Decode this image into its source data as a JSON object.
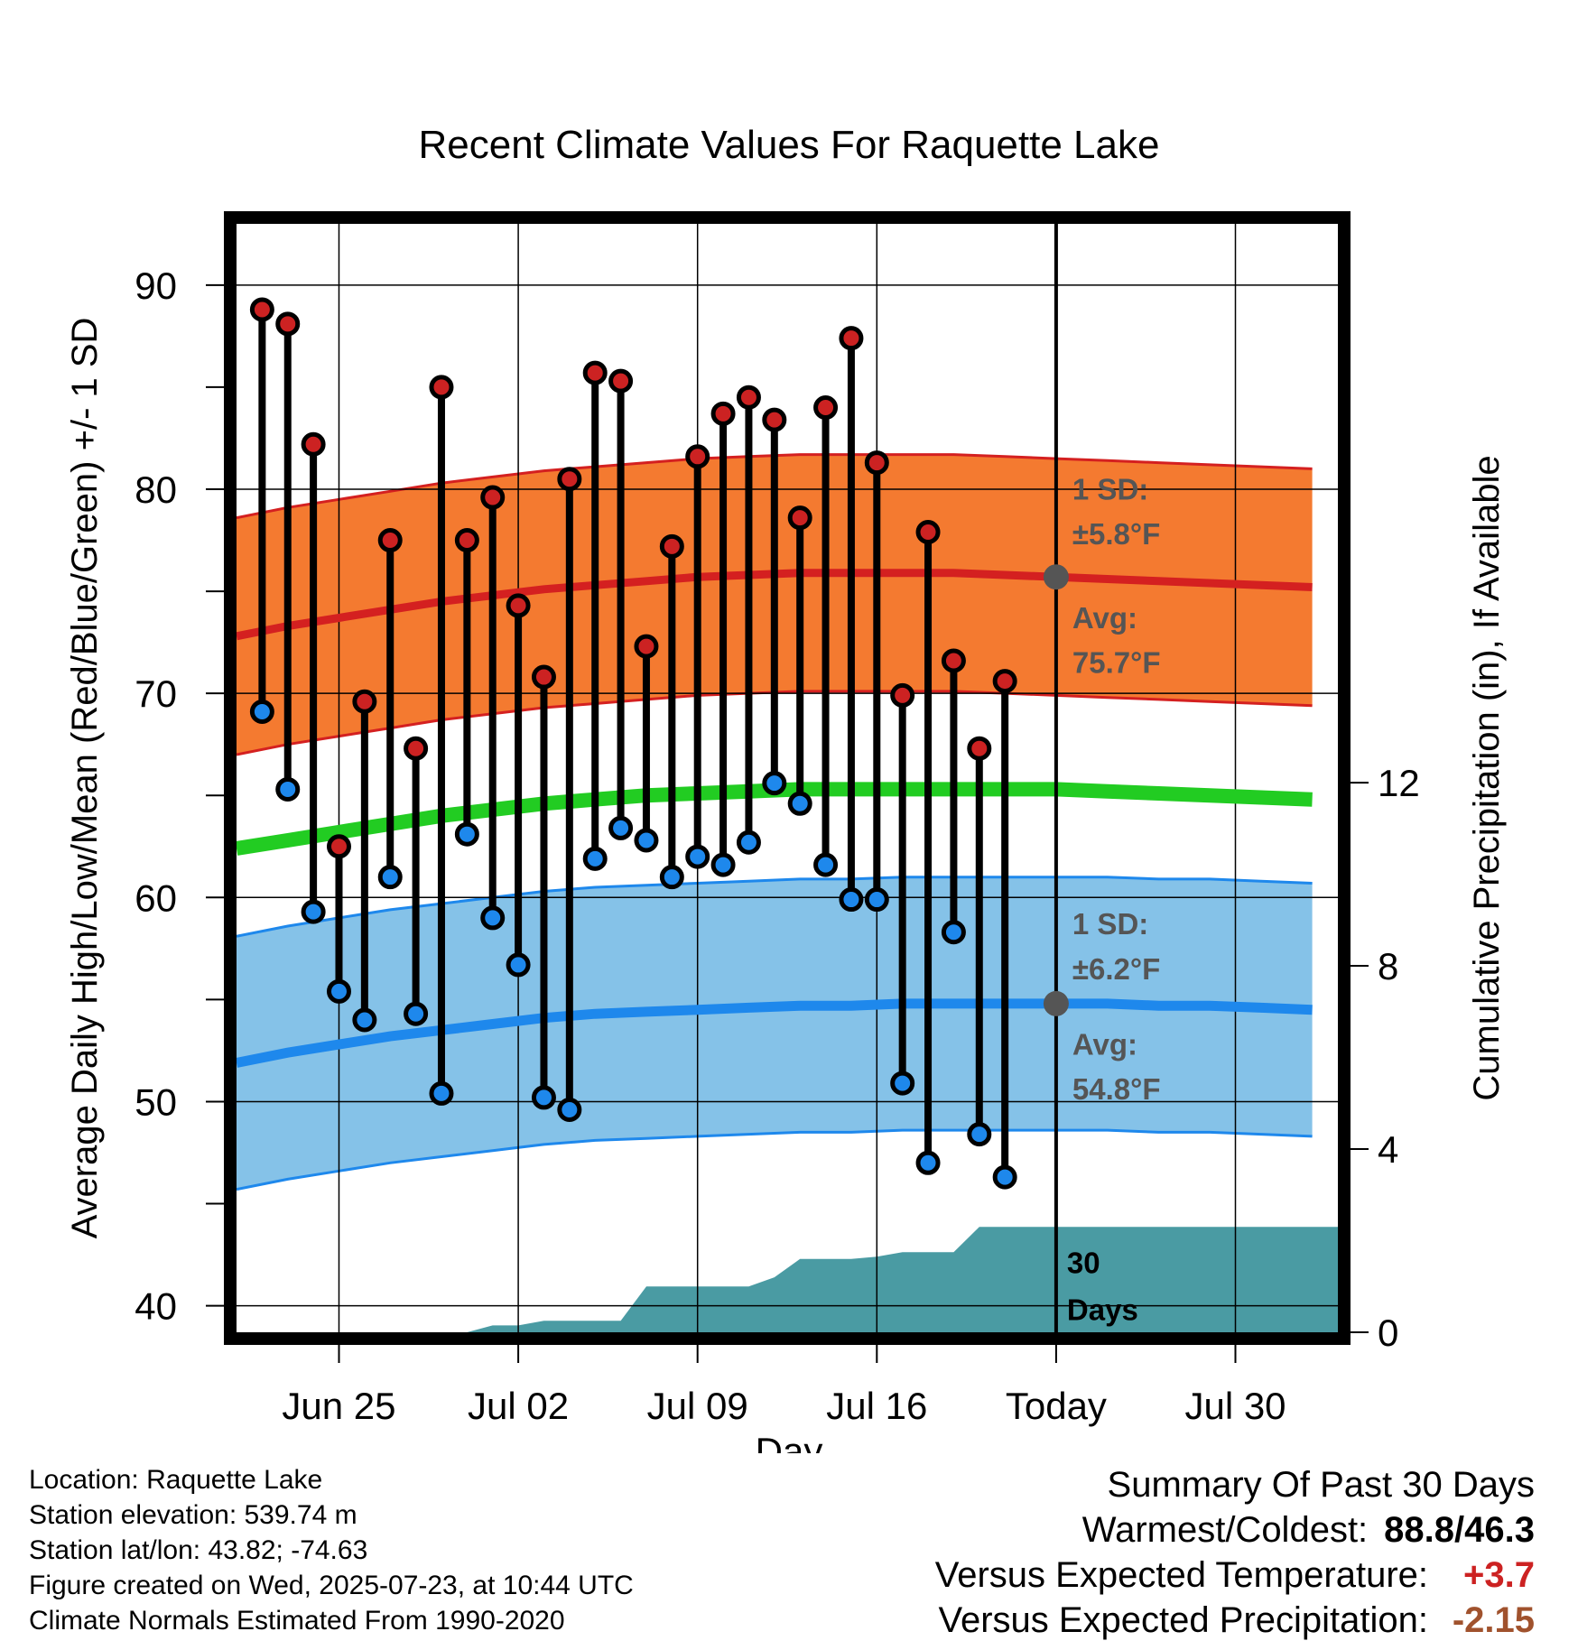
{
  "chart_data": {
    "type": "line",
    "title": "Recent Climate Values For Raquette Lake",
    "xlabel": "Day",
    "ylabel": "Average Daily High/Low/Mean (Red/Blue/Green) +/- 1 SD",
    "y2label": "Cumulative Precipitation (in), If Available",
    "x_ticks": [
      "Jun 25",
      "Jul 02",
      "Jul 09",
      "Jul 16",
      "Today",
      "Jul 30"
    ],
    "y_ticks": [
      "40",
      "50",
      "60",
      "70",
      "80",
      "90"
    ],
    "y2_ticks": [
      "0",
      "4",
      "8",
      "12"
    ],
    "ylim": [
      38.7,
      93
    ],
    "y2lim": [
      0,
      24.2
    ],
    "xlim": [
      "Jun 21",
      "Aug 03"
    ],
    "grid": true,
    "colors": {
      "high_band": "#f47a30",
      "high_line": "#d42020",
      "low_band": "#85c2e8",
      "low_line": "#1e88ec",
      "mean_line": "#22cc22",
      "precip": "#4a9ba3",
      "high_point": "#cc2222",
      "low_point": "#1e88ec"
    },
    "dates": [
      "Jun 22",
      "Jun 23",
      "Jun 24",
      "Jun 25",
      "Jun 26",
      "Jun 27",
      "Jun 28",
      "Jun 29",
      "Jun 30",
      "Jul 01",
      "Jul 02",
      "Jul 03",
      "Jul 04",
      "Jul 05",
      "Jul 06",
      "Jul 07",
      "Jul 08",
      "Jul 09",
      "Jul 10",
      "Jul 11",
      "Jul 12",
      "Jul 13",
      "Jul 14",
      "Jul 15",
      "Jul 16",
      "Jul 17",
      "Jul 18",
      "Jul 19",
      "Jul 20",
      "Jul 21",
      "Jul 22"
    ],
    "series": [
      {
        "name": "High",
        "values": [
          88.8,
          88.1,
          82.2,
          62.5,
          69.6,
          77.5,
          67.3,
          85.0,
          77.5,
          79.6,
          74.3,
          70.8,
          80.5,
          85.7,
          85.3,
          72.3,
          77.2,
          81.6,
          83.7,
          84.5,
          83.4,
          78.6,
          84.0,
          87.4,
          81.3,
          69.9,
          77.9,
          71.6,
          67.3,
          70.6,
          null
        ]
      },
      {
        "name": "Low",
        "values": [
          69.1,
          65.3,
          59.3,
          55.4,
          54.0,
          61.0,
          54.3,
          50.4,
          63.1,
          59.0,
          56.7,
          50.2,
          49.6,
          61.9,
          63.4,
          62.8,
          61.0,
          62.0,
          61.6,
          62.7,
          65.6,
          64.6,
          61.6,
          59.9,
          59.9,
          50.9,
          47.0,
          58.3,
          48.4,
          46.3,
          null
        ]
      }
    ],
    "normals": {
      "dates": [
        "Jun 21",
        "Jun 23",
        "Jun 25",
        "Jun 27",
        "Jun 29",
        "Jul 01",
        "Jul 03",
        "Jul 05",
        "Jul 07",
        "Jul 09",
        "Jul 11",
        "Jul 13",
        "Jul 15",
        "Jul 17",
        "Jul 19",
        "Jul 21",
        "Jul 23",
        "Jul 25",
        "Jul 27",
        "Jul 29",
        "Jul 31",
        "Aug 02"
      ],
      "high_avg": [
        72.8,
        73.3,
        73.7,
        74.1,
        74.5,
        74.8,
        75.1,
        75.3,
        75.5,
        75.7,
        75.8,
        75.9,
        75.9,
        75.9,
        75.9,
        75.8,
        75.7,
        75.6,
        75.5,
        75.4,
        75.3,
        75.2
      ],
      "high_sd": 5.8,
      "low_avg": [
        51.9,
        52.4,
        52.8,
        53.2,
        53.5,
        53.8,
        54.1,
        54.3,
        54.4,
        54.5,
        54.6,
        54.7,
        54.7,
        54.8,
        54.8,
        54.8,
        54.8,
        54.8,
        54.7,
        54.7,
        54.6,
        54.5
      ],
      "low_sd": 6.2,
      "mean_avg": [
        62.4,
        62.8,
        63.2,
        63.6,
        64.0,
        64.3,
        64.6,
        64.8,
        65.0,
        65.1,
        65.2,
        65.3,
        65.3,
        65.3,
        65.3,
        65.3,
        65.3,
        65.2,
        65.1,
        65.0,
        64.9,
        64.8
      ]
    },
    "precip": {
      "dates": [
        "Jun 21",
        "Jun 30",
        "Jul 01",
        "Jul 02",
        "Jul 03",
        "Jul 04",
        "Jul 05",
        "Jul 06",
        "Jul 07",
        "Jul 08",
        "Jul 09",
        "Jul 10",
        "Jul 11",
        "Jul 12",
        "Jul 13",
        "Jul 14",
        "Jul 15",
        "Jul 16",
        "Jul 17",
        "Jul 18",
        "Jul 19",
        "Jul 20",
        "Jul 21",
        "Jul 22",
        "Aug 03"
      ],
      "cumulative": [
        0,
        0,
        0.15,
        0.15,
        0.25,
        0.25,
        0.25,
        0.25,
        1.0,
        1.0,
        1.0,
        1.0,
        1.0,
        1.2,
        1.6,
        1.6,
        1.6,
        1.65,
        1.75,
        1.75,
        1.75,
        2.3,
        2.3,
        2.3,
        2.3
      ]
    },
    "today": "Jul 23",
    "annotations": {
      "high_sd_label": "1 SD:",
      "high_sd_value": "±5.8°F",
      "high_avg_label": "Avg:",
      "high_avg_value": "75.7°F",
      "high_avg_marker": 75.7,
      "low_sd_label": "1 SD:",
      "low_sd_value": "±6.2°F",
      "low_avg_label": "Avg:",
      "low_avg_value": "54.8°F",
      "low_avg_marker": 54.8,
      "days_line1": "30",
      "days_line2": "Days"
    }
  },
  "info": {
    "location": "Location: Raquette Lake",
    "elevation": "Station elevation: 539.74 m",
    "latlon": "Station lat/lon: 43.82; -74.63",
    "created": "Figure created on Wed, 2025-07-23, at 10:44 UTC",
    "normals": "Climate Normals Estimated From 1990-2020"
  },
  "summary": {
    "title": "Summary Of Past 30 Days",
    "warm_label": "Warmest/Coldest:",
    "warm_value": "88.8/46.3",
    "temp_label": "Versus Expected Temperature:",
    "temp_value": "+3.7",
    "precip_label": "Versus Expected Precipitation:",
    "precip_value": "-2.15"
  }
}
